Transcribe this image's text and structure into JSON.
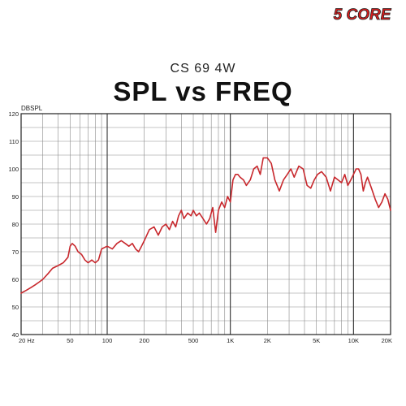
{
  "brand": {
    "text": "5 CORE",
    "color": "#d81e1e"
  },
  "chart_data": {
    "type": "line",
    "subtitle": "CS 69 4W",
    "title": "SPL vs FREQ",
    "ylabel": "DBSPL",
    "xlabel": "",
    "x_scale": "log",
    "xlim": [
      20,
      20000
    ],
    "ylim": [
      40,
      120
    ],
    "grid": true,
    "y_ticks": [
      40,
      50,
      60,
      70,
      80,
      90,
      100,
      110,
      120
    ],
    "y_tick_labels": [
      "40",
      "50",
      "60",
      "70",
      "80",
      "90",
      "100",
      "110",
      "120"
    ],
    "x_ticks": [
      20,
      50,
      100,
      200,
      500,
      1000,
      2000,
      5000,
      10000,
      20000
    ],
    "x_tick_labels": [
      "20 Hz",
      "50",
      "100",
      "200",
      "500",
      "1K",
      "2K",
      "5K",
      "10K",
      "20K"
    ],
    "line_color": "#c8282d",
    "series": [
      {
        "x": [
          20,
          22,
          24,
          26,
          28,
          30,
          33,
          36,
          40,
          44,
          48,
          50,
          52,
          55,
          58,
          62,
          66,
          70,
          75,
          80,
          85,
          90,
          100,
          110,
          120,
          130,
          140,
          150,
          160,
          170,
          180,
          190,
          200,
          220,
          240,
          260,
          280,
          300,
          320,
          340,
          360,
          380,
          400,
          420,
          450,
          480,
          500,
          530,
          560,
          600,
          640,
          680,
          720,
          760,
          800,
          850,
          900,
          950,
          1000,
          1050,
          1100,
          1150,
          1200,
          1280,
          1350,
          1450,
          1550,
          1650,
          1750,
          1850,
          2000,
          2150,
          2300,
          2500,
          2700,
          2900,
          3100,
          3300,
          3600,
          3900,
          4200,
          4500,
          4800,
          5100,
          5500,
          6000,
          6500,
          7000,
          7500,
          8000,
          8500,
          9000,
          9500,
          10000,
          10500,
          11000,
          11500,
          12000,
          12500,
          13000,
          14000,
          15000,
          16000,
          17000,
          18000,
          19000,
          20000
        ],
        "values": [
          55,
          56,
          57,
          58,
          59,
          60,
          62,
          64,
          65,
          66,
          68,
          72,
          73,
          72,
          70,
          69,
          67,
          66,
          67,
          66,
          67,
          71,
          72,
          71,
          73,
          74,
          73,
          72,
          73,
          71,
          70,
          72,
          74,
          78,
          79,
          76,
          79,
          80,
          78,
          81,
          79,
          83,
          85,
          82,
          84,
          83,
          85,
          83,
          84,
          82,
          80,
          82,
          86,
          77,
          85,
          88,
          86,
          90,
          88,
          96,
          98,
          98,
          97,
          96,
          94,
          96,
          100,
          101,
          98,
          104,
          104,
          102,
          96,
          92,
          96,
          98,
          100,
          97,
          101,
          100,
          94,
          93,
          96,
          98,
          99,
          97,
          92,
          97,
          96,
          95,
          98,
          94,
          96,
          98,
          100,
          100,
          98,
          92,
          95,
          97,
          93,
          89,
          86,
          88,
          91,
          89,
          85
        ]
      }
    ]
  }
}
